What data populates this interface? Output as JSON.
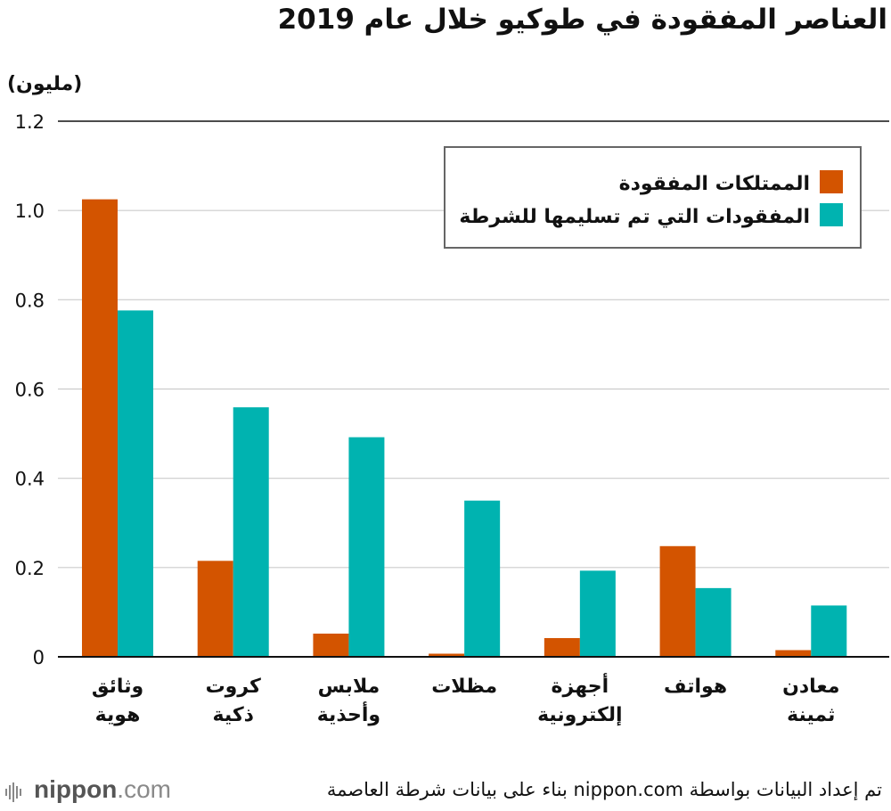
{
  "title": "العناصر المفقودة في طوكيو خلال عام 2019",
  "unit_label": "(مليون)",
  "colors": {
    "lost": "#d35400",
    "returned": "#00b3b0",
    "grid": "#cccccc",
    "axis": "#111111"
  },
  "chart_data": {
    "type": "bar",
    "title": "العناصر المفقودة في طوكيو خلال عام 2019",
    "ylabel": "(مليون)",
    "xlabel": "",
    "ylim": [
      0,
      1.2
    ],
    "yticks": [
      0,
      0.2,
      0.4,
      0.6,
      0.8,
      1.0,
      1.2
    ],
    "ytick_labels": [
      "0",
      "0.2",
      "0.4",
      "0.6",
      "0.8",
      "1.0",
      "1.2"
    ],
    "categories": [
      [
        "وثائق",
        "هوية"
      ],
      [
        "كروت",
        "ذكية"
      ],
      [
        "ملابس",
        "وأحذية"
      ],
      [
        "مظلات"
      ],
      [
        "أجهزة",
        "إلكترونية"
      ],
      [
        "هواتف"
      ],
      [
        "معادن",
        "ثمينة"
      ]
    ],
    "series": [
      {
        "name": "الممتلكات المفقودة",
        "color": "#d35400",
        "values": [
          1.025,
          0.215,
          0.052,
          0.007,
          0.042,
          0.248,
          0.015
        ]
      },
      {
        "name": "المفقودات التي تم تسليمها للشرطة",
        "color": "#00b3b0",
        "values": [
          0.776,
          0.559,
          0.492,
          0.35,
          0.193,
          0.154,
          0.115
        ]
      }
    ],
    "legend_position": "top-right",
    "grid": true
  },
  "footer": {
    "logo_main": "nippon",
    "logo_suffix": ".com",
    "source": "تم إعداد البيانات بواسطة nippon.com بناء على بيانات شرطة العاصمة"
  }
}
